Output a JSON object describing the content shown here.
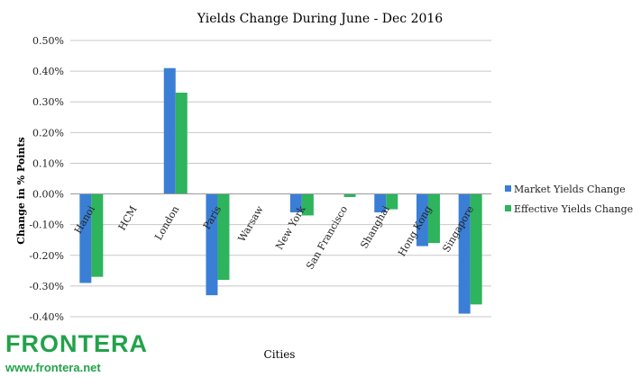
{
  "chart_data": {
    "type": "bar",
    "title": "Yields Change During June - Dec 2016",
    "xlabel": "Cities",
    "ylabel": "Change in % Points",
    "categories": [
      "Hanoi",
      "HCM",
      "London",
      "Paris",
      "Warsaw",
      "New York",
      "San Francisco",
      "Shanghai",
      "Hong Kong",
      "Singapore"
    ],
    "series": [
      {
        "name": "Market Yields Change",
        "color": "#3a7fd5",
        "values": [
          -0.29,
          0.0,
          0.41,
          -0.33,
          0.0,
          -0.06,
          0.0,
          -0.06,
          -0.17,
          -0.39
        ]
      },
      {
        "name": "Effective Yields Change",
        "color": "#2db45c",
        "values": [
          -0.27,
          0.0,
          0.33,
          -0.28,
          0.0,
          -0.07,
          -0.01,
          -0.05,
          -0.16,
          -0.36
        ]
      }
    ],
    "ylim": [
      -0.4,
      0.5
    ],
    "yticks": [
      "0.50%",
      "0.40%",
      "0.30%",
      "0.20%",
      "0.10%",
      "0.00%",
      "-0.10%",
      "-0.20%",
      "-0.30%",
      "-0.40%"
    ],
    "grid": true,
    "legend_position": "right"
  },
  "logo": {
    "name": "FRONTERA",
    "url": "www.frontera.net"
  }
}
